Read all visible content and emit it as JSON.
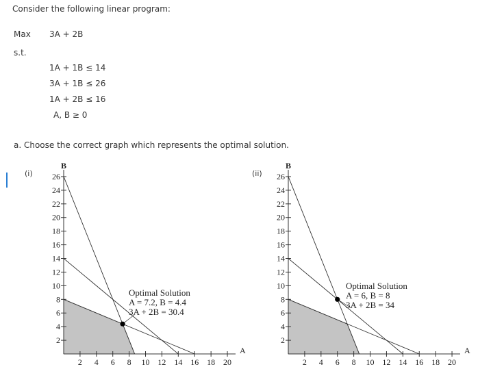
{
  "intro": "Consider the following linear program:",
  "objective": {
    "label": "Max",
    "expression": "3A + 2B"
  },
  "subject_to": "s.t.",
  "constraints": [
    "1A + 1B ≤ 14",
    "3A + 1B ≤ 26",
    "1A + 2B ≤ 16",
    "A, B ≥ 0"
  ],
  "question": "a. Choose the correct graph which represents the optimal solution.",
  "graphs": [
    {
      "label": "(i)",
      "x_label": "A",
      "y_label": "B",
      "xlim": [
        0,
        21
      ],
      "ylim": [
        0,
        27
      ],
      "xticks": [
        2,
        4,
        6,
        8,
        10,
        12,
        14,
        16,
        18,
        20
      ],
      "yticks": [
        2,
        4,
        6,
        8,
        10,
        12,
        14,
        16,
        18,
        20,
        22,
        24,
        26
      ],
      "lines": [
        {
          "x": [
            0,
            14
          ],
          "y": [
            14,
            0
          ]
        },
        {
          "x": [
            0,
            8.67
          ],
          "y": [
            26,
            0
          ]
        },
        {
          "x": [
            0,
            16
          ],
          "y": [
            8,
            0
          ]
        }
      ],
      "region": {
        "x": [
          0,
          0,
          7.2,
          8.67
        ],
        "y": [
          0,
          8,
          4.4,
          0
        ]
      },
      "point": {
        "x": 7.2,
        "y": 4.4
      },
      "annotation": [
        "Optimal Solution",
        "A = 7.2, B = 4.4",
        "3A + 2B = 30.4"
      ]
    },
    {
      "label": "(ii)",
      "x_label": "A",
      "y_label": "B",
      "xlim": [
        0,
        21
      ],
      "ylim": [
        0,
        27
      ],
      "xticks": [
        2,
        4,
        6,
        8,
        10,
        12,
        14,
        16,
        18,
        20
      ],
      "yticks": [
        2,
        4,
        6,
        8,
        10,
        12,
        14,
        16,
        18,
        20,
        22,
        24,
        26
      ],
      "lines": [
        {
          "x": [
            0,
            14
          ],
          "y": [
            14,
            0
          ]
        },
        {
          "x": [
            0,
            8.67
          ],
          "y": [
            26,
            0
          ]
        },
        {
          "x": [
            0,
            16
          ],
          "y": [
            8,
            0
          ]
        }
      ],
      "region": {
        "x": [
          0,
          0,
          7.2,
          8.67
        ],
        "y": [
          0,
          8,
          4.4,
          0
        ]
      },
      "point": {
        "x": 6,
        "y": 8
      },
      "annotation": [
        "Optimal Solution",
        "A = 6, B = 8",
        "3A + 2B = 34"
      ]
    }
  ]
}
